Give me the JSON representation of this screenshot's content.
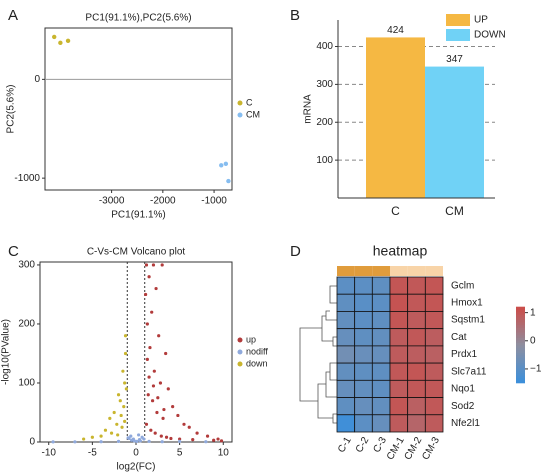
{
  "chart_data": [
    {
      "type": "scatter",
      "panel": "A",
      "title": "PC1(91.1%),PC2(5.6%)",
      "xlabel": "PC1(91.1%)",
      "ylabel": "PC2(5.6%)",
      "xlim": [
        -4300,
        -650
      ],
      "ylim": [
        -1120,
        520
      ],
      "xticks": [
        -3000,
        -2000,
        -1000
      ],
      "yticks": [
        -1000,
        0
      ],
      "zero_line": true,
      "legend": "right",
      "series": [
        {
          "name": "C",
          "color": "#c9b52e",
          "x": [
            -4120,
            -4000,
            -3850
          ],
          "values": [
            430,
            370,
            390
          ]
        },
        {
          "name": "CM",
          "color": "#86bdf0",
          "x": [
            -860,
            -770,
            -720
          ],
          "values": [
            -870,
            -855,
            -1030
          ]
        }
      ]
    },
    {
      "type": "bar",
      "panel": "B",
      "ylabel": "mRNA",
      "categories": [
        "C",
        "CM"
      ],
      "ylim": [
        0,
        470
      ],
      "yticks": [
        100,
        200,
        300,
        400
      ],
      "grid": true,
      "legend": "upper right",
      "series": [
        {
          "name": "UP",
          "color": "#f5b843",
          "values": [
            424,
            null
          ]
        },
        {
          "name": "DOWN",
          "color": "#70d2f6",
          "values": [
            null,
            347
          ]
        }
      ]
    },
    {
      "type": "scatter",
      "panel": "C",
      "title": "C-Vs-CM Volcano plot",
      "xlabel": "log2(FC)",
      "ylabel": "-log10(PValue)",
      "xlim": [
        -11,
        11
      ],
      "ylim": [
        0,
        305
      ],
      "xticks": [
        -10,
        -5,
        0,
        5,
        10
      ],
      "yticks": [
        0,
        100,
        200,
        300
      ],
      "vlines": [
        -1,
        1
      ],
      "legend": "right",
      "series": [
        {
          "name": "up",
          "color": "#b23b3b",
          "x": [
            1.2,
            1.5,
            1.1,
            2.0,
            2.3,
            1.8,
            2.6,
            3.0,
            3.4,
            1.3,
            1.6,
            2.1,
            2.8,
            3.7,
            4.2,
            4.8,
            5.5,
            6.1,
            7.0,
            8.2,
            9.4,
            1.4,
            1.9,
            2.4,
            3.1,
            1.2,
            1.7,
            2.2,
            2.9,
            3.5,
            4.0,
            5.0,
            6.5,
            1.3,
            1.5,
            2.0,
            2.5,
            3.2,
            8.9,
            9.8
          ],
          "values": [
            300,
            280,
            250,
            300,
            260,
            220,
            180,
            300,
            150,
            200,
            160,
            120,
            100,
            90,
            60,
            45,
            30,
            25,
            15,
            10,
            5,
            80,
            70,
            50,
            40,
            30,
            20,
            15,
            10,
            8,
            6,
            5,
            4,
            140,
            110,
            95,
            75,
            55,
            3,
            2
          ]
        },
        {
          "name": "nodiff",
          "color": "#8fa9dc",
          "x": [
            -0.8,
            -0.5,
            -0.2,
            0.1,
            0.4,
            0.7,
            -0.6,
            0.3,
            0.9,
            -0.9,
            0.5,
            -0.3,
            1.5,
            -2.0,
            3.0,
            -4.0,
            5.0,
            -7.0,
            8.0,
            -9.5
          ],
          "values": [
            6,
            3,
            2,
            1,
            4,
            8,
            10,
            12,
            5,
            7,
            2,
            5,
            1,
            1,
            0.5,
            0.5,
            1,
            0.3,
            0.5,
            0.2
          ]
        },
        {
          "name": "down",
          "color": "#c9b52e",
          "x": [
            -1.2,
            -1.5,
            -1.3,
            -2.0,
            -1.8,
            -2.5,
            -3.0,
            -1.4,
            -1.7,
            -2.2,
            -3.5,
            -4.0,
            -1.1,
            -1.6,
            -2.8,
            -5.0,
            -6.0,
            -1.3,
            -2.1,
            -1.2
          ],
          "values": [
            150,
            120,
            100,
            80,
            70,
            50,
            40,
            60,
            45,
            30,
            20,
            10,
            90,
            25,
            15,
            8,
            5,
            35,
            12,
            180
          ]
        }
      ]
    },
    {
      "type": "heatmap",
      "panel": "D",
      "title": "heatmap",
      "rows": [
        "Gclm",
        "Hmox1",
        "Sqstm1",
        "Cat",
        "Prdx1",
        "Slc7a11",
        "Nqo1",
        "Sod2",
        "Nfe2l1"
      ],
      "columns": [
        "C-1",
        "C-2",
        "C-3",
        "CM-1",
        "CM-2",
        "CM-3"
      ],
      "column_colors": [
        "#e09c3c",
        "#e09c3c",
        "#e09c3c",
        "#f8d4a8",
        "#f8d4a8",
        "#f8d4a8"
      ],
      "values": [
        [
          -0.95,
          -0.95,
          -0.9,
          1.0,
          0.95,
          1.0
        ],
        [
          -0.9,
          -1.0,
          -0.95,
          1.05,
          0.95,
          1.0
        ],
        [
          -0.85,
          -0.95,
          -0.9,
          1.0,
          0.9,
          0.95
        ],
        [
          -0.8,
          -0.9,
          -0.85,
          0.9,
          0.95,
          0.85
        ],
        [
          -0.6,
          -0.75,
          -0.8,
          0.9,
          0.85,
          0.8
        ],
        [
          -0.85,
          -0.9,
          -0.9,
          0.95,
          1.0,
          0.9
        ],
        [
          -0.8,
          -0.85,
          -0.9,
          0.9,
          0.95,
          0.95
        ],
        [
          -0.9,
          -0.8,
          -0.85,
          1.0,
          0.8,
          0.95
        ],
        [
          -1.4,
          -0.95,
          -0.8,
          0.9,
          0.7,
          0.9
        ]
      ],
      "color_lim": [
        -1.5,
        1.2
      ],
      "colors": [
        "#3a8fdc",
        "#8e8fa0",
        "#cc4c48"
      ],
      "colorbar_ticks": [
        1,
        0,
        {
          "value": -1,
          "label": "−1"
        }
      ]
    }
  ]
}
